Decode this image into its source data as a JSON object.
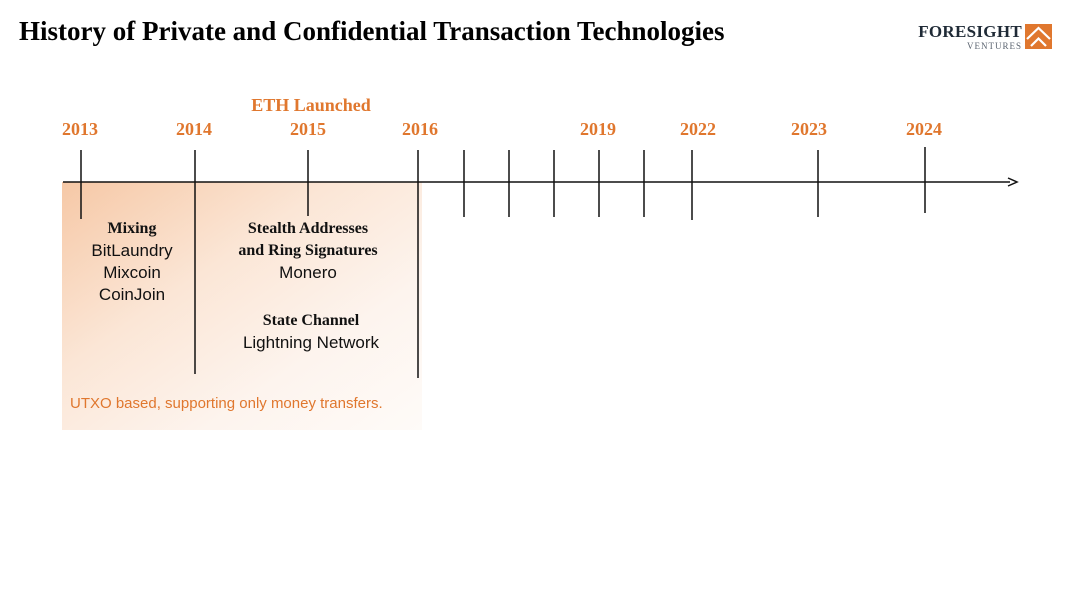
{
  "title": "History of Private and Confidential Transaction Technologies",
  "logo": {
    "name": "FORESIGHT",
    "sub": "VENTURES",
    "accent": "#e0772e"
  },
  "colors": {
    "accent": "#e0772e",
    "text": "#111111",
    "shade_from": "#f6c8a6",
    "shade_to": "#fefbf8"
  },
  "timeline": {
    "years": [
      "2013",
      "2014",
      "2015",
      "2016",
      "2019",
      "2022",
      "2023",
      "2024"
    ],
    "eth_label": "ETH Launched"
  },
  "groups": [
    {
      "title": "Mixing",
      "items": [
        "BitLaundry",
        "Mixcoin",
        "CoinJoin"
      ]
    },
    {
      "title": "Stealth Addresses and Ring Signatures",
      "title_lines": [
        "Stealth Addresses",
        "and Ring Signatures"
      ],
      "items": [
        "Monero"
      ]
    },
    {
      "title": "State Channel",
      "items": [
        "Lightning Network"
      ]
    }
  ],
  "note": "UTXO based, supporting only money transfers."
}
